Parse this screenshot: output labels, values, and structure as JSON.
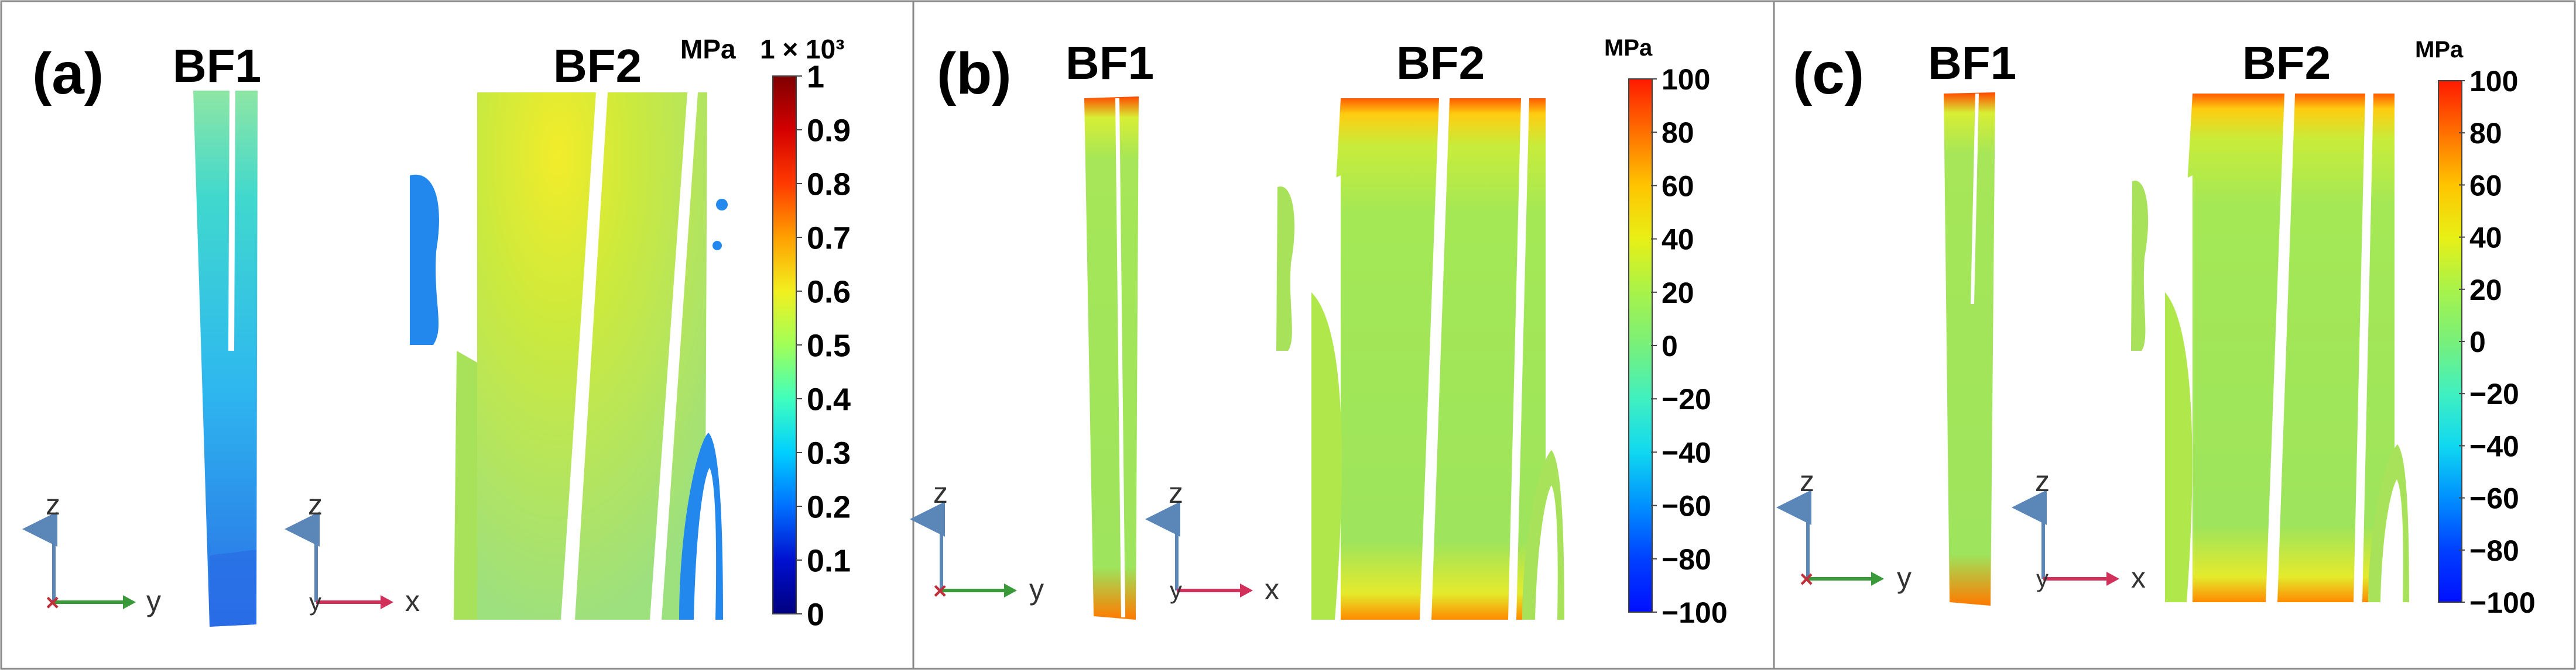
{
  "panels": [
    {
      "id": "a",
      "label": "(a)",
      "view1_title": "BF1",
      "view2_title": "BF2",
      "colorbar": {
        "unit": "MPa",
        "multiplier": "1 × 10³",
        "ticks": [
          "1",
          "0.9",
          "0.8",
          "0.7",
          "0.6",
          "0.5",
          "0.4",
          "0.3",
          "0.2",
          "0.1",
          "0"
        ],
        "colormap": [
          "#7f0000",
          "#d40000",
          "#ff3a00",
          "#ffa000",
          "#f2f01f",
          "#a0ff58",
          "#40ffbd",
          "#00d0ff",
          "#0070ff",
          "#0010d0",
          "#00007f"
        ]
      },
      "triad1": {
        "up_axis": "z",
        "right_axis": "y",
        "right_color": "#3a9a3a"
      },
      "triad2": {
        "up_axis": "z",
        "right_axis": "x",
        "right_color": "#d0305a"
      }
    },
    {
      "id": "b",
      "label": "(b)",
      "view1_title": "BF1",
      "view2_title": "BF2",
      "colorbar": {
        "unit": "MPa",
        "multiplier": "",
        "ticks": [
          "100",
          "80",
          "60",
          "40",
          "20",
          "0",
          "−20",
          "−40",
          "−60",
          "−80",
          "−100"
        ],
        "colormap": [
          "#ff1a00",
          "#ff7000",
          "#ffc400",
          "#e8f016",
          "#a8f24a",
          "#78f07a",
          "#40f0c0",
          "#10d8f0",
          "#0090ff",
          "#0040ff",
          "#0010ff"
        ]
      },
      "triad1": {
        "up_axis": "z",
        "right_axis": "y",
        "right_color": "#3a9a3a"
      },
      "triad2": {
        "up_axis": "z",
        "right_axis": "x",
        "right_color": "#d0305a"
      }
    },
    {
      "id": "c",
      "label": "(c)",
      "view1_title": "BF1",
      "view2_title": "BF2",
      "colorbar": {
        "unit": "MPa",
        "multiplier": "",
        "ticks": [
          "100",
          "80",
          "60",
          "40",
          "20",
          "0",
          "−20",
          "−40",
          "−60",
          "−80",
          "−100"
        ],
        "colormap": [
          "#ff1a00",
          "#ff7000",
          "#ffc400",
          "#e8f016",
          "#a8f24a",
          "#78f07a",
          "#40f0c0",
          "#10d8f0",
          "#0090ff",
          "#0040ff",
          "#0010ff"
        ]
      },
      "triad1": {
        "up_axis": "z",
        "right_axis": "y",
        "right_color": "#3a9a3a"
      },
      "triad2": {
        "up_axis": "z",
        "right_axis": "x",
        "right_color": "#d0305a"
      }
    }
  ]
}
